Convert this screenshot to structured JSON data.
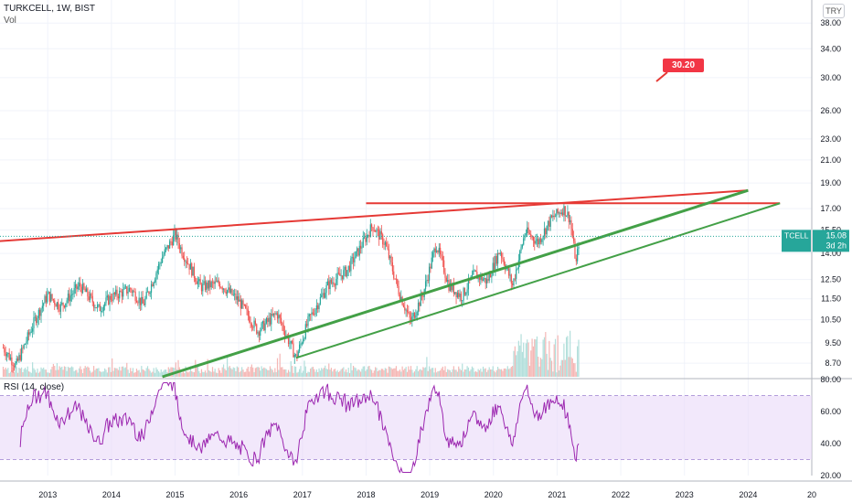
{
  "header": {
    "title": "TURKCELL, 1W, BIST",
    "volume_label": "Vol"
  },
  "currency": "TRY",
  "symbol": {
    "name": "TCELL",
    "price": "15.08",
    "countdown": "3d 2h"
  },
  "callout": {
    "value": "30.20",
    "color": "#f23645"
  },
  "rsi": {
    "label": "RSI (14, close)",
    "upper": 70,
    "lower": 30,
    "ticks": [
      "80.00",
      "60.00",
      "40.00",
      "20.00"
    ]
  },
  "colors": {
    "up": "#26a69a",
    "down": "#ef5350",
    "resistance": "#e53935",
    "support": "#43a047",
    "rsi_line": "#9c27b0",
    "rsi_band": "#e9d9f8"
  },
  "chart_data": {
    "type": "candlestick",
    "title": "TURKCELL, 1W, BIST",
    "x_labels": [
      "2013",
      "2014",
      "2015",
      "2016",
      "2017",
      "2018",
      "2019",
      "2020",
      "2021",
      "2022",
      "2023",
      "2024",
      "20"
    ],
    "price_axis_ticks": [
      "38.00",
      "34.00",
      "30.00",
      "26.00",
      "23.00",
      "21.00",
      "19.00",
      "17.00",
      "15.50",
      "14.00",
      "12.50",
      "11.50",
      "10.50",
      "9.50",
      "8.70"
    ],
    "y_scale": "log",
    "last_price": 15.08,
    "price_path": [
      [
        2012.3,
        9.3
      ],
      [
        2012.5,
        8.6
      ],
      [
        2012.8,
        10.5
      ],
      [
        2013.0,
        11.7
      ],
      [
        2013.2,
        11.1
      ],
      [
        2013.5,
        12.2
      ],
      [
        2013.8,
        11.0
      ],
      [
        2014.0,
        11.6
      ],
      [
        2014.3,
        12.0
      ],
      [
        2014.5,
        11.2
      ],
      [
        2014.8,
        13.8
      ],
      [
        2015.0,
        15.2
      ],
      [
        2015.1,
        14.2
      ],
      [
        2015.4,
        12.1
      ],
      [
        2015.7,
        12.3
      ],
      [
        2016.0,
        11.4
      ],
      [
        2016.3,
        10.0
      ],
      [
        2016.6,
        10.8
      ],
      [
        2016.9,
        8.9
      ],
      [
        2017.1,
        10.5
      ],
      [
        2017.4,
        12.2
      ],
      [
        2017.7,
        13.0
      ],
      [
        2017.9,
        14.3
      ],
      [
        2018.1,
        15.8
      ],
      [
        2018.3,
        14.6
      ],
      [
        2018.5,
        12.0
      ],
      [
        2018.7,
        10.4
      ],
      [
        2018.9,
        11.8
      ],
      [
        2019.1,
        14.6
      ],
      [
        2019.3,
        12.2
      ],
      [
        2019.5,
        11.6
      ],
      [
        2019.7,
        12.8
      ],
      [
        2019.9,
        12.4
      ],
      [
        2020.1,
        14.2
      ],
      [
        2020.3,
        12.2
      ],
      [
        2020.5,
        15.4
      ],
      [
        2020.7,
        14.7
      ],
      [
        2020.9,
        16.2
      ],
      [
        2021.1,
        17.0
      ],
      [
        2021.2,
        16.3
      ],
      [
        2021.3,
        13.4
      ],
      [
        2021.35,
        15.08
      ]
    ],
    "drawings": [
      {
        "type": "line",
        "color": "resistance",
        "from": [
          2012.0,
          14.7
        ],
        "to": [
          2024.0,
          18.4
        ]
      },
      {
        "type": "line",
        "color": "resistance",
        "from": [
          2018.0,
          17.4
        ],
        "to": [
          2024.5,
          17.4
        ]
      },
      {
        "type": "line",
        "color": "support",
        "from": [
          2014.8,
          8.2
        ],
        "to": [
          2024.0,
          18.4
        ]
      },
      {
        "type": "line",
        "color": "support",
        "from": [
          2016.9,
          8.9
        ],
        "to": [
          2024.5,
          17.4
        ]
      }
    ],
    "volume": "shown as bars at chart bottom",
    "rsi_range": [
      20,
      80
    ]
  }
}
